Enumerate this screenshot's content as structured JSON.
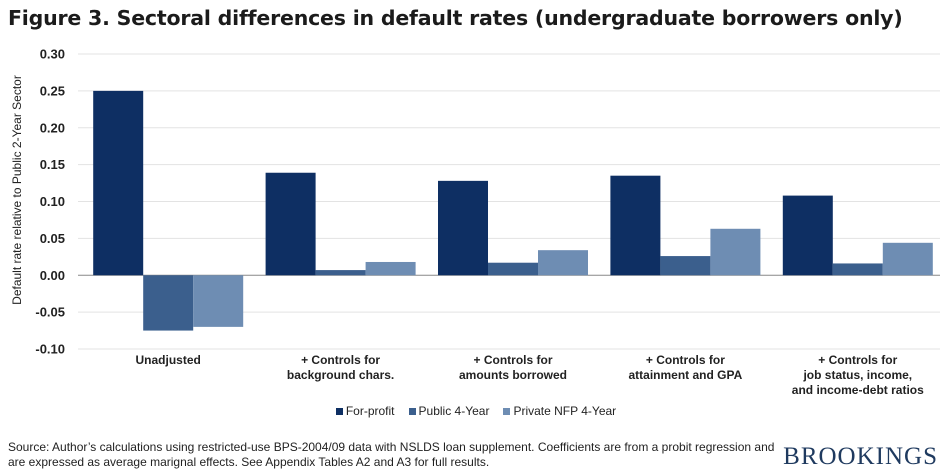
{
  "title": "Figure 3. Sectoral differences in default rates  (undergraduate  borrowers only)",
  "source": "Source: Author’s calculations using restricted-use BPS-2004/09 data with NSLDS loan supplement. Coefficients are from a probit regression and are expressed as average marignal effects. See Appendix Tables A2 and A3 for full results.",
  "brand": "BROOKINGS",
  "colors": {
    "for_profit": "#0e2f63",
    "public_4yr": "#3b5f8d",
    "private_nfp": "#6e8db3"
  },
  "chart_data": {
    "type": "bar",
    "title": "Figure 3. Sectoral differences in default rates  (undergraduate  borrowers only)",
    "xlabel": "",
    "ylabel": "Default rate relative to Public 2-Year Sector",
    "ylim": [
      -0.1,
      0.3
    ],
    "yticks": [
      "0.30",
      "0.25",
      "0.20",
      "0.15",
      "0.10",
      "0.05",
      "0.00",
      "-0.05",
      "-0.10"
    ],
    "grid": true,
    "legend_position": "bottom",
    "categories": [
      [
        "Unadjusted"
      ],
      [
        "+ Controls for",
        "background chars."
      ],
      [
        "+ Controls for",
        "amounts borrowed"
      ],
      [
        "+ Controls for",
        "attainment and GPA"
      ],
      [
        "+ Controls for",
        "job status, income,",
        "and income-debt ratios"
      ]
    ],
    "series": [
      {
        "name": "For-profit",
        "values": [
          0.25,
          0.139,
          0.128,
          0.135,
          0.108
        ]
      },
      {
        "name": "Public 4-Year",
        "values": [
          -0.075,
          0.007,
          0.017,
          0.026,
          0.016
        ]
      },
      {
        "name": "Private NFP 4-Year",
        "values": [
          -0.07,
          0.018,
          0.034,
          0.063,
          0.044
        ]
      }
    ]
  }
}
